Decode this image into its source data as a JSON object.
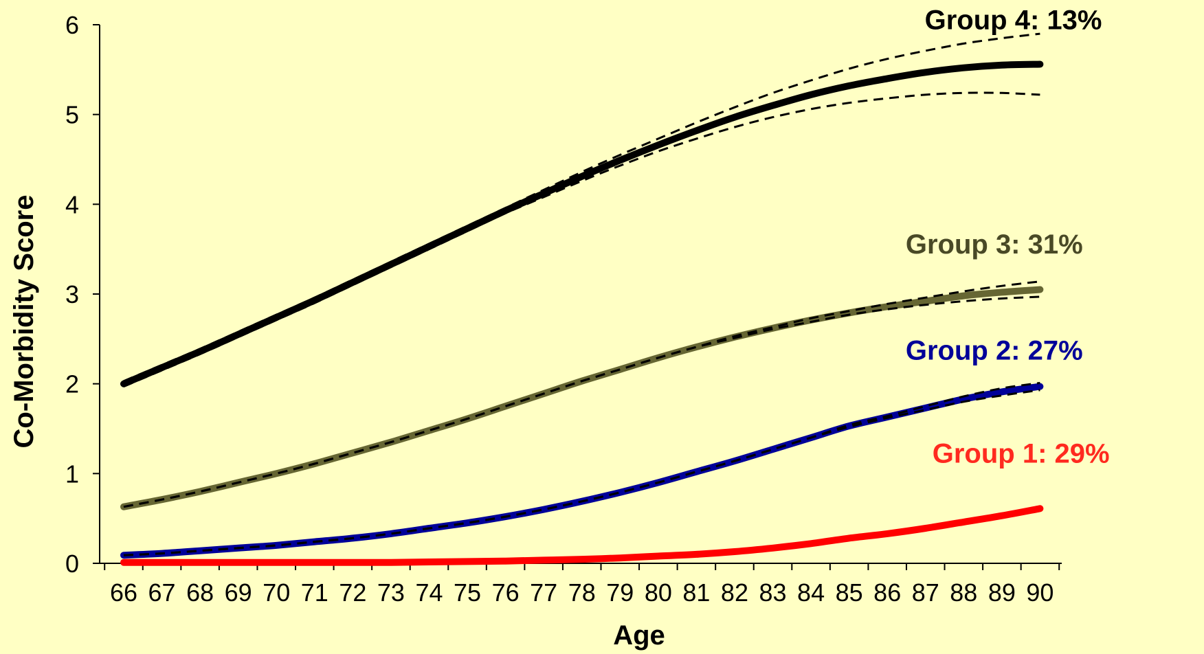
{
  "chart_data": {
    "type": "line",
    "xlabel": "Age",
    "ylabel": "Co-Morbidity Score",
    "xlim": [
      66,
      90
    ],
    "ylim": [
      0,
      6
    ],
    "x_ticks": [
      66,
      67,
      68,
      69,
      70,
      71,
      72,
      73,
      74,
      75,
      76,
      77,
      78,
      79,
      80,
      81,
      82,
      83,
      84,
      85,
      86,
      87,
      88,
      89,
      90
    ],
    "y_ticks": [
      0,
      1,
      2,
      3,
      4,
      5,
      6
    ],
    "grid": false,
    "legend": "none",
    "background": "#ffffc4",
    "x": [
      66,
      67,
      68,
      69,
      70,
      71,
      72,
      73,
      74,
      75,
      76,
      77,
      78,
      79,
      80,
      81,
      82,
      83,
      84,
      85,
      86,
      87,
      88,
      89,
      90
    ],
    "series": [
      {
        "label": "Group 1: 29%",
        "color": "#ff0000",
        "label_color": "#ff2a1f",
        "label_anchor": [
          89.5,
          1.12
        ],
        "values": [
          0.01,
          0.01,
          0.01,
          0.01,
          0.01,
          0.01,
          0.01,
          0.01,
          0.015,
          0.02,
          0.025,
          0.035,
          0.045,
          0.06,
          0.08,
          0.1,
          0.13,
          0.17,
          0.22,
          0.28,
          0.33,
          0.39,
          0.46,
          0.53,
          0.61
        ],
        "ci_lower": null,
        "ci_upper": null
      },
      {
        "label": "Group 2: 27%",
        "color": "#000099",
        "label_color": "#000099",
        "label_anchor": [
          88.8,
          2.27
        ],
        "values": [
          0.09,
          0.11,
          0.14,
          0.17,
          0.2,
          0.24,
          0.28,
          0.33,
          0.39,
          0.45,
          0.52,
          0.6,
          0.69,
          0.79,
          0.9,
          1.02,
          1.14,
          1.27,
          1.4,
          1.53,
          1.63,
          1.73,
          1.83,
          1.91,
          1.97
        ],
        "ci_lower": [
          0.09,
          0.11,
          0.14,
          0.17,
          0.2,
          0.24,
          0.28,
          0.33,
          0.39,
          0.45,
          0.52,
          0.6,
          0.69,
          0.79,
          0.9,
          1.02,
          1.14,
          1.27,
          1.4,
          1.52,
          1.62,
          1.71,
          1.8,
          1.87,
          1.93
        ],
        "ci_upper": [
          0.09,
          0.11,
          0.14,
          0.17,
          0.2,
          0.24,
          0.28,
          0.33,
          0.39,
          0.45,
          0.52,
          0.6,
          0.69,
          0.79,
          0.9,
          1.02,
          1.14,
          1.27,
          1.4,
          1.54,
          1.64,
          1.75,
          1.86,
          1.95,
          2.01
        ]
      },
      {
        "label": "Group 3: 31%",
        "color": "#666633",
        "label_color": "#494926",
        "label_anchor": [
          88.8,
          3.45
        ],
        "values": [
          0.63,
          0.71,
          0.8,
          0.9,
          1.0,
          1.11,
          1.23,
          1.35,
          1.48,
          1.61,
          1.75,
          1.89,
          2.03,
          2.16,
          2.29,
          2.41,
          2.52,
          2.62,
          2.71,
          2.79,
          2.86,
          2.92,
          2.98,
          3.02,
          3.05
        ],
        "ci_lower": [
          0.63,
          0.71,
          0.8,
          0.9,
          1.0,
          1.11,
          1.23,
          1.35,
          1.48,
          1.61,
          1.75,
          1.89,
          2.03,
          2.16,
          2.29,
          2.41,
          2.51,
          2.61,
          2.69,
          2.77,
          2.83,
          2.88,
          2.92,
          2.95,
          2.97
        ],
        "ci_upper": [
          0.63,
          0.71,
          0.8,
          0.9,
          1.0,
          1.11,
          1.23,
          1.35,
          1.48,
          1.61,
          1.75,
          1.89,
          2.03,
          2.16,
          2.29,
          2.41,
          2.53,
          2.63,
          2.73,
          2.81,
          2.89,
          2.96,
          3.03,
          3.09,
          3.14
        ]
      },
      {
        "label": "Group 4: 13%",
        "color": "#000000",
        "label_color": "#000000",
        "label_anchor": [
          89.3,
          5.95
        ],
        "values": [
          2.0,
          2.18,
          2.36,
          2.55,
          2.74,
          2.93,
          3.13,
          3.33,
          3.53,
          3.73,
          3.93,
          4.12,
          4.31,
          4.49,
          4.66,
          4.82,
          4.97,
          5.1,
          5.22,
          5.32,
          5.4,
          5.47,
          5.52,
          5.55,
          5.56
        ],
        "ci_lower": [
          1.97,
          2.15,
          2.33,
          2.52,
          2.71,
          2.9,
          3.1,
          3.3,
          3.5,
          3.7,
          3.9,
          4.08,
          4.26,
          4.43,
          4.59,
          4.73,
          4.86,
          4.97,
          5.06,
          5.13,
          5.18,
          5.22,
          5.24,
          5.24,
          5.22
        ],
        "ci_upper": [
          2.03,
          2.21,
          2.39,
          2.58,
          2.77,
          2.96,
          3.16,
          3.36,
          3.56,
          3.76,
          3.96,
          4.16,
          4.36,
          4.55,
          4.73,
          4.91,
          5.08,
          5.24,
          5.38,
          5.51,
          5.62,
          5.71,
          5.79,
          5.85,
          5.9
        ]
      }
    ]
  }
}
